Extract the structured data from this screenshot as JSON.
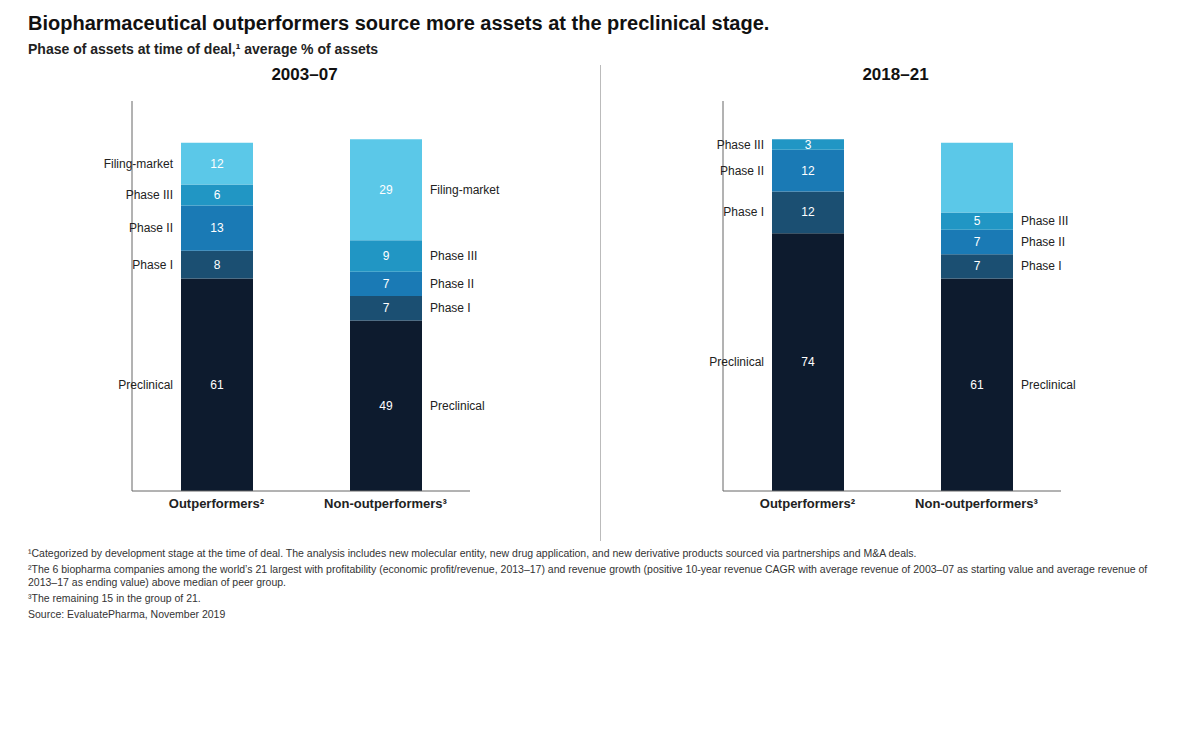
{
  "title": "Biopharmaceutical outperformers source more assets at the preclinical stage.",
  "subtitle": "Phase of assets at time of deal,¹ average % of assets",
  "annotations": [
    "¹Categorized by development stage at the time of deal. The analysis includes new molecular entity, new drug application, and new derivative products sourced via partnerships and M&A deals.",
    "²The 6 biopharma companies among the world’s 21 largest with profitability (economic profit/revenue, 2013–17) and revenue growth (positive 10-year revenue CAGR with average revenue of 2003–07 as starting value and average revenue of 2013–17 as ending value) above median of peer group.",
    "³The remaining 15 in the group of 21.",
    "Source: EvaluatePharma, November 2019"
  ],
  "chart_data": [
    {
      "type": "bar",
      "title": "2003–07",
      "categories": [
        "Outperformers²",
        "Non-outperformers³"
      ],
      "series": [
        {
          "name": "Preclinical",
          "color": "#0d1b2e",
          "values": [
            61,
            49
          ]
        },
        {
          "name": "Phase I",
          "color": "#1b4f72",
          "values": [
            8,
            7
          ]
        },
        {
          "name": "Phase II",
          "color": "#1a7ab5",
          "values": [
            13,
            7
          ]
        },
        {
          "name": "Phase III",
          "color": "#2196c4",
          "values": [
            6,
            9
          ]
        },
        {
          "name": "Filing-market",
          "color": "#5bc8e8",
          "values": [
            12,
            29
          ]
        }
      ],
      "stacked": true,
      "data_labels": true,
      "ylim": [
        0,
        112
      ],
      "tick_labels": "x"
    },
    {
      "type": "bar",
      "title": "2018–21",
      "categories": [
        "Outperformers²",
        "Non-outperformers³"
      ],
      "series": [
        {
          "name": "Preclinical",
          "color": "#0d1b2e",
          "values": [
            74,
            61
          ]
        },
        {
          "name": "Phase I",
          "color": "#1b4f72",
          "values": [
            12,
            7
          ]
        },
        {
          "name": "Phase II",
          "color": "#1a7ab5",
          "values": [
            12,
            7
          ]
        },
        {
          "name": "Phase III",
          "color": "#2196c4",
          "values": [
            3,
            5
          ]
        },
        {
          "name": "Filing-market",
          "color": "#5bc8e8",
          "values": [
            0,
            20
          ]
        }
      ],
      "stacked": true,
      "data_labels": true,
      "ylim": [
        0,
        112
      ],
      "tick_labels": "x"
    }
  ]
}
